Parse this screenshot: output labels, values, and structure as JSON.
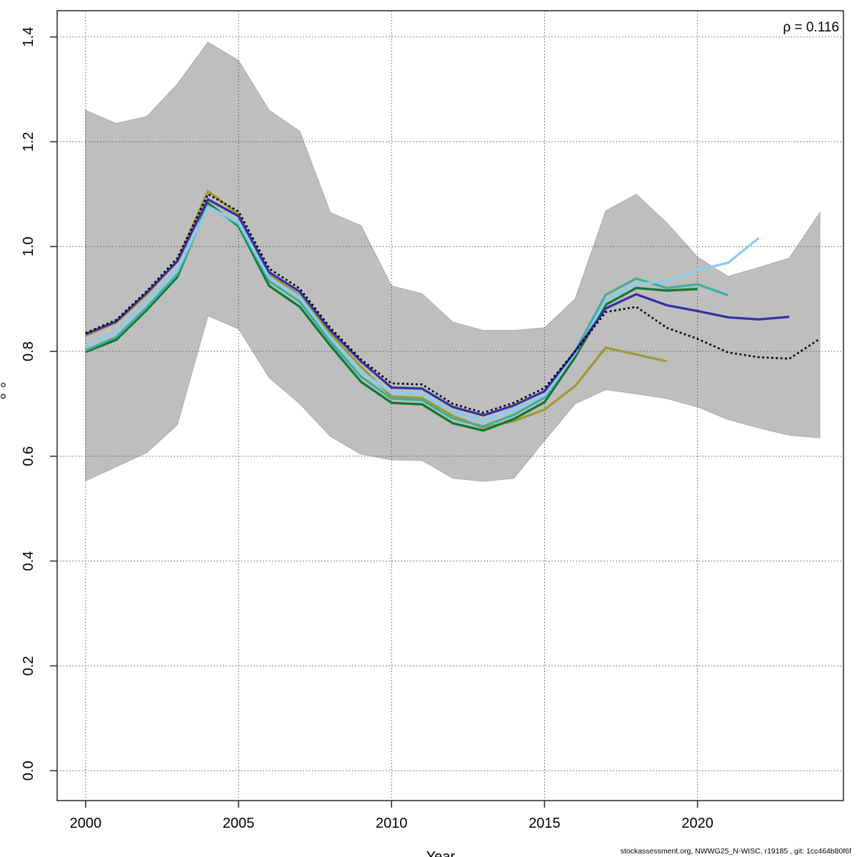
{
  "figure": {
    "rho_label": "ρ = 0.116",
    "footer": "stockassessment.org, NWWG25_N-WISC, r19185 , git: 1cc464b80f6f",
    "x_axis_label": "Year",
    "x_ticks": [
      2000,
      2005,
      2010,
      2015,
      2020
    ],
    "y_ticks": [
      "0.0",
      "0.2",
      "0.4",
      "0.6",
      "0.8",
      "1.0",
      "1.2",
      "1.4"
    ]
  },
  "chart_data": {
    "type": "line",
    "title": "",
    "xlabel": "Year",
    "ylabel": "",
    "xlim": [
      1999.07,
      2024.77
    ],
    "ylim": [
      -0.057,
      1.45
    ],
    "grid": "dotted",
    "legend_position": "none",
    "annotation": {
      "text": "ρ = 0.116",
      "position": "top-right",
      "meaning": "Mohn's rho"
    },
    "band": {
      "name": "confidence-band",
      "color": "#BEBEBE",
      "edge_color": "#ABABAB",
      "years": [
        2000,
        2001,
        2002,
        2003,
        2004,
        2005,
        2006,
        2007,
        2008,
        2009,
        2010,
        2011,
        2012,
        2013,
        2014,
        2015,
        2016,
        2017,
        2018,
        2019,
        2020,
        2021,
        2022,
        2023,
        2024
      ],
      "upper": [
        1.26,
        1.235,
        1.248,
        1.31,
        1.39,
        1.355,
        1.26,
        1.22,
        1.065,
        1.04,
        0.925,
        0.91,
        0.856,
        0.84,
        0.84,
        0.845,
        0.9,
        1.068,
        1.1,
        1.045,
        0.98,
        0.943,
        0.96,
        0.978,
        1.065
      ],
      "lower": [
        0.553,
        0.58,
        0.607,
        0.66,
        0.868,
        0.843,
        0.75,
        0.7,
        0.638,
        0.604,
        0.593,
        0.592,
        0.558,
        0.552,
        0.558,
        0.63,
        0.7,
        0.727,
        0.719,
        0.71,
        0.694,
        0.67,
        0.654,
        0.64,
        0.635
      ]
    },
    "series": [
      {
        "name": "base-run",
        "color": "#000000",
        "style": "dotted",
        "years": [
          2000,
          2001,
          2002,
          2003,
          2004,
          2005,
          2006,
          2007,
          2008,
          2009,
          2010,
          2011,
          2012,
          2013,
          2014,
          2015,
          2016,
          2017,
          2018,
          2019,
          2020,
          2021,
          2022,
          2023,
          2024
        ],
        "values": [
          0.835,
          0.86,
          0.915,
          0.978,
          1.1,
          1.067,
          0.958,
          0.92,
          0.845,
          0.785,
          0.739,
          0.737,
          0.7,
          0.683,
          0.702,
          0.73,
          0.8,
          0.875,
          0.885,
          0.845,
          0.824,
          0.798,
          0.789,
          0.786,
          0.824
        ]
      },
      {
        "name": "retro-peel-2023",
        "color": "#3730A5",
        "style": "solid",
        "years": [
          2000,
          2001,
          2002,
          2003,
          2004,
          2005,
          2006,
          2007,
          2008,
          2009,
          2010,
          2011,
          2012,
          2013,
          2014,
          2015,
          2016,
          2017,
          2018,
          2019,
          2020,
          2021,
          2022,
          2023
        ],
        "values": [
          0.833,
          0.857,
          0.912,
          0.972,
          1.09,
          1.058,
          0.951,
          0.914,
          0.84,
          0.781,
          0.731,
          0.729,
          0.694,
          0.678,
          0.697,
          0.724,
          0.8,
          0.882,
          0.909,
          0.888,
          0.877,
          0.865,
          0.861,
          0.866
        ]
      },
      {
        "name": "retro-peel-2022",
        "color": "#87CEEB",
        "style": "solid",
        "years": [
          2000,
          2001,
          2002,
          2003,
          2004,
          2005,
          2006,
          2007,
          2008,
          2009,
          2010,
          2011,
          2012,
          2013,
          2014,
          2015,
          2016,
          2017,
          2018,
          2019,
          2020,
          2021,
          2022
        ],
        "values": [
          0.812,
          0.838,
          0.894,
          0.955,
          1.076,
          1.046,
          0.941,
          0.904,
          0.826,
          0.762,
          0.721,
          0.719,
          0.685,
          0.669,
          0.689,
          0.716,
          0.796,
          0.896,
          0.928,
          0.934,
          0.955,
          0.969,
          1.016
        ]
      },
      {
        "name": "retro-peel-2021",
        "color": "#40AE9C",
        "style": "solid",
        "years": [
          2000,
          2001,
          2002,
          2003,
          2004,
          2005,
          2006,
          2007,
          2008,
          2009,
          2010,
          2011,
          2012,
          2013,
          2014,
          2015,
          2016,
          2017,
          2018,
          2019,
          2020,
          2021
        ],
        "values": [
          0.802,
          0.827,
          0.884,
          0.947,
          1.078,
          1.042,
          0.934,
          0.895,
          0.819,
          0.752,
          0.71,
          0.707,
          0.672,
          0.657,
          0.679,
          0.712,
          0.8,
          0.908,
          0.939,
          0.921,
          0.928,
          0.907
        ]
      },
      {
        "name": "retro-peel-2020",
        "color": "#117733",
        "style": "solid",
        "years": [
          2000,
          2001,
          2002,
          2003,
          2004,
          2005,
          2006,
          2007,
          2008,
          2009,
          2010,
          2011,
          2012,
          2013,
          2014,
          2015,
          2016,
          2017,
          2018,
          2019,
          2020
        ],
        "values": [
          0.799,
          0.822,
          0.879,
          0.942,
          1.083,
          1.039,
          0.925,
          0.885,
          0.811,
          0.742,
          0.702,
          0.699,
          0.663,
          0.649,
          0.671,
          0.703,
          0.789,
          0.889,
          0.921,
          0.916,
          0.919
        ]
      },
      {
        "name": "retro-peel-2019",
        "color": "#9E9933",
        "style": "solid",
        "years": [
          2000,
          2001,
          2002,
          2003,
          2004,
          2005,
          2006,
          2007,
          2008,
          2009,
          2010,
          2011,
          2012,
          2013,
          2014,
          2015,
          2016,
          2017,
          2018,
          2019
        ],
        "values": [
          0.83,
          0.855,
          0.909,
          0.973,
          1.106,
          1.061,
          0.947,
          0.907,
          0.834,
          0.771,
          0.714,
          0.711,
          0.677,
          0.654,
          0.667,
          0.689,
          0.734,
          0.807,
          0.794,
          0.781
        ]
      }
    ]
  }
}
